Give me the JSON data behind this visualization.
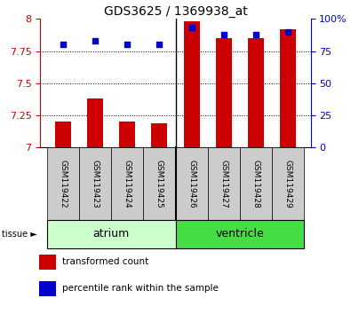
{
  "title": "GDS3625 / 1369938_at",
  "samples": [
    "GSM119422",
    "GSM119423",
    "GSM119424",
    "GSM119425",
    "GSM119426",
    "GSM119427",
    "GSM119428",
    "GSM119429"
  ],
  "transformed_count": [
    7.2,
    7.38,
    7.2,
    7.19,
    7.98,
    7.85,
    7.85,
    7.92
  ],
  "percentile_rank": [
    80,
    83,
    80,
    80,
    93,
    88,
    88,
    90
  ],
  "ylim_left": [
    7.0,
    8.0
  ],
  "ylim_right": [
    0,
    100
  ],
  "yticks_left": [
    7.0,
    7.25,
    7.5,
    7.75,
    8.0
  ],
  "yticks_right": [
    0,
    25,
    50,
    75,
    100
  ],
  "bar_color": "#cc0000",
  "dot_color": "#0000cc",
  "bar_width": 0.5,
  "dot_size": 25,
  "tissue_groups": [
    {
      "label": "atrium",
      "start": 0,
      "end": 3,
      "color": "#ccffcc"
    },
    {
      "label": "ventricle",
      "start": 4,
      "end": 7,
      "color": "#44dd44"
    }
  ],
  "tissue_label": "tissue",
  "legend_items": [
    {
      "label": "transformed count",
      "color": "#cc0000"
    },
    {
      "label": "percentile rank within the sample",
      "color": "#0000cc"
    }
  ],
  "grid_color": "black",
  "background_color": "#ffffff",
  "left_axis_color": "#cc0000",
  "right_axis_color": "#0000cc",
  "n_atrium": 4,
  "ylabel_left_fontsize": 8,
  "ylabel_right_fontsize": 8,
  "title_fontsize": 10,
  "sample_fontsize": 6.5,
  "tissue_fontsize": 9,
  "legend_fontsize": 7.5
}
